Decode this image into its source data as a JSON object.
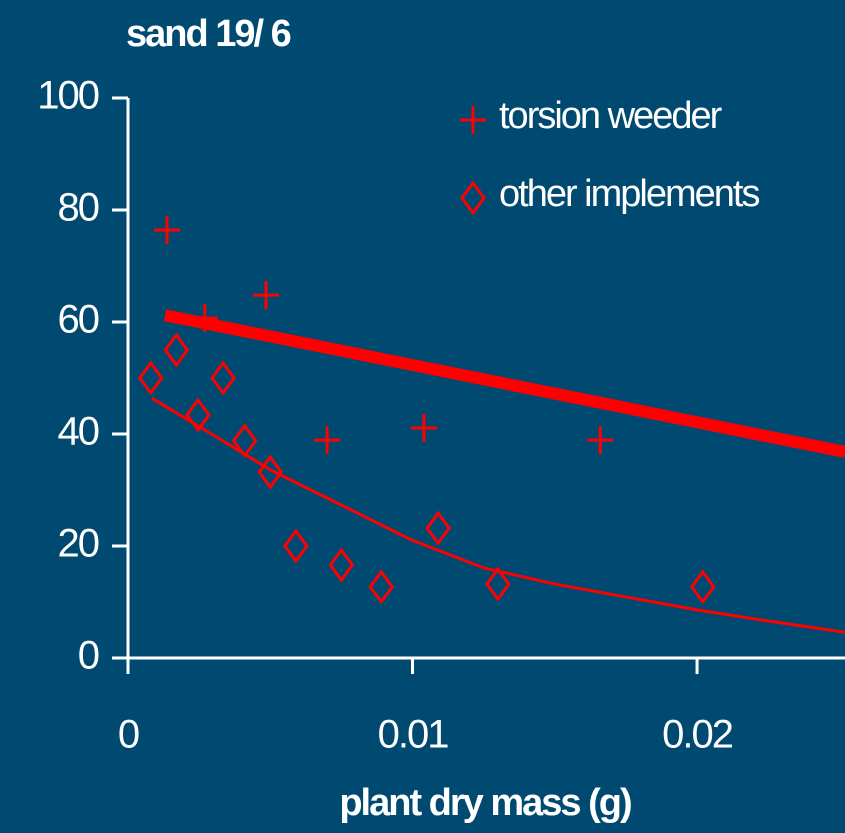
{
  "chart_data": {
    "type": "scatter",
    "title": "sand 19/ 6",
    "x_label": "plant dry mass (g)",
    "xlim": [
      0,
      0.0252
    ],
    "ylim": [
      0,
      100
    ],
    "xticks": [
      0,
      0.01,
      0.02
    ],
    "yticks": [
      0,
      20,
      40,
      60,
      80,
      100
    ],
    "legend": "upper right",
    "series": [
      {
        "name": "torsion weeder",
        "color": "#ff0000",
        "marker": "plus",
        "x": [
          0.00137,
          0.0027,
          0.00485,
          0.007,
          0.0104,
          0.0166
        ],
        "values": [
          76.4,
          60.7,
          64.8,
          38.9,
          41.1,
          38.9
        ]
      },
      {
        "name": "other implements",
        "color": "#ff0000",
        "marker": "diamond",
        "x": [
          0.0008,
          0.0017,
          0.00246,
          0.00334,
          0.0041,
          0.005,
          0.0059,
          0.0075,
          0.0089,
          0.0109,
          0.013,
          0.0202
        ],
        "values": [
          50,
          55,
          43.4,
          50,
          38.8,
          33.2,
          20,
          16.6,
          12.7,
          23.2,
          13.2,
          12.7
        ]
      }
    ],
    "fit_lines": [
      {
        "color": "#ff0000",
        "x": [
          0.0013,
          0.0252
        ],
        "values": [
          61.2,
          36.8
        ]
      },
      {
        "color": "#ff0000",
        "x": [
          0.00084,
          0.003,
          0.005,
          0.0075,
          0.01,
          0.0125,
          0.015,
          0.0175,
          0.02,
          0.0225,
          0.0252
        ],
        "values": [
          46.4,
          39.8,
          33.6,
          27.3,
          21,
          16.1,
          13.2,
          10.9,
          8.6,
          6.6,
          4.6
        ]
      }
    ]
  }
}
